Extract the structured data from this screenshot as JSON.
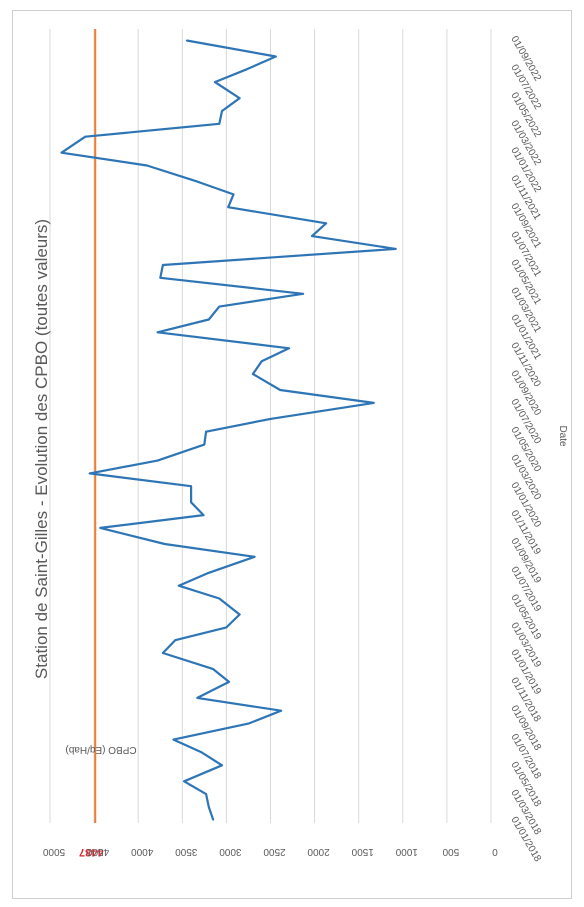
{
  "chart_data": {
    "type": "line",
    "title": "Station de Saint-Gilles - Evolution des CPBO (toutes valeurs)",
    "xlabel": "Date",
    "ylabel": "CPBO (Eq/Hab)",
    "ylim": [
      0,
      5000
    ],
    "yticks": [
      0,
      500,
      1000,
      1500,
      2000,
      2500,
      3000,
      3500,
      4000,
      4500,
      5000
    ],
    "grid": true,
    "legend": "none",
    "x_tick_labels": [
      "01/01/2018",
      "01/03/2018",
      "01/05/2018",
      "01/07/2018",
      "01/09/2018",
      "01/11/2018",
      "01/01/2019",
      "01/03/2019",
      "01/05/2019",
      "01/07/2019",
      "01/09/2019",
      "01/11/2019",
      "01/01/2020",
      "01/03/2020",
      "01/05/2020",
      "01/07/2020",
      "01/09/2020",
      "01/11/2020",
      "01/01/2021",
      "01/03/2021",
      "01/05/2021",
      "01/07/2021",
      "01/09/2021",
      "01/11/2021",
      "01/01/2022",
      "01/03/2022",
      "01/05/2022",
      "01/07/2022",
      "01/09/2022"
    ],
    "x_range": [
      "2018-01-01",
      "2022-09-30"
    ],
    "reference_line": {
      "value": 4487,
      "label": "4487",
      "color": "#ed7d31",
      "label_color": "#d9262c"
    },
    "series": [
      {
        "color": "#2e75b6",
        "points": [
          [
            "2018-01-08",
            3150
          ],
          [
            "2018-02-05",
            3200
          ],
          [
            "2018-03-05",
            3230
          ],
          [
            "2018-04-02",
            3480
          ],
          [
            "2018-05-07",
            3050
          ],
          [
            "2018-06-04",
            3280
          ],
          [
            "2018-07-02",
            3600
          ],
          [
            "2018-08-06",
            2750
          ],
          [
            "2018-09-03",
            2380
          ],
          [
            "2018-10-01",
            3330
          ],
          [
            "2018-11-05",
            2970
          ],
          [
            "2018-12-03",
            3150
          ],
          [
            "2019-01-07",
            3720
          ],
          [
            "2019-02-04",
            3580
          ],
          [
            "2019-03-04",
            3000
          ],
          [
            "2019-04-01",
            2850
          ],
          [
            "2019-05-06",
            3080
          ],
          [
            "2019-06-03",
            3540
          ],
          [
            "2019-07-01",
            3200
          ],
          [
            "2019-08-05",
            2680
          ],
          [
            "2019-09-02",
            3700
          ],
          [
            "2019-10-07",
            4430
          ],
          [
            "2019-11-04",
            3260
          ],
          [
            "2019-12-02",
            3400
          ],
          [
            "2020-01-06",
            3400
          ],
          [
            "2020-02-03",
            4550
          ],
          [
            "2020-03-02",
            3780
          ],
          [
            "2020-04-06",
            3250
          ],
          [
            "2020-05-04",
            3230
          ],
          [
            "2020-06-01",
            2500
          ],
          [
            "2020-07-06",
            1330
          ],
          [
            "2020-08-03",
            2390
          ],
          [
            "2020-09-07",
            2700
          ],
          [
            "2020-10-05",
            2600
          ],
          [
            "2020-11-02",
            2290
          ],
          [
            "2020-12-07",
            3780
          ],
          [
            "2021-01-04",
            3200
          ],
          [
            "2021-02-01",
            3080
          ],
          [
            "2021-03-01",
            2130
          ],
          [
            "2021-04-05",
            3750
          ],
          [
            "2021-05-03",
            3720
          ],
          [
            "2021-06-07",
            1080
          ],
          [
            "2021-07-05",
            2030
          ],
          [
            "2021-08-02",
            1870
          ],
          [
            "2021-09-06",
            2980
          ],
          [
            "2021-10-04",
            2920
          ],
          [
            "2021-11-01",
            3330
          ],
          [
            "2021-12-06",
            3900
          ],
          [
            "2022-01-03",
            4870
          ],
          [
            "2022-02-07",
            4600
          ],
          [
            "2022-03-07",
            3080
          ],
          [
            "2022-04-04",
            3050
          ],
          [
            "2022-05-02",
            2850
          ],
          [
            "2022-06-06",
            3130
          ],
          [
            "2022-07-04",
            2770
          ],
          [
            "2022-08-01",
            2440
          ],
          [
            "2022-09-05",
            3450
          ]
        ]
      }
    ]
  }
}
